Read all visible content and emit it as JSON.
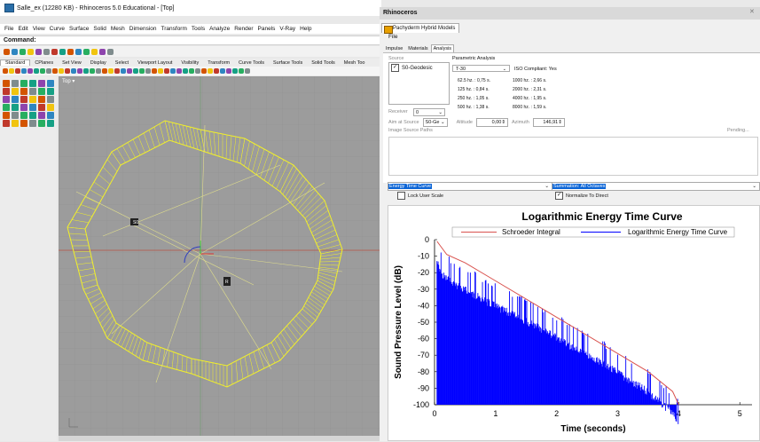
{
  "rhino": {
    "title": "Salle_ex (12280 KB) - Rhinoceros 5.0 Educational - [Top]",
    "menu": [
      "File",
      "Edit",
      "View",
      "Curve",
      "Surface",
      "Solid",
      "Mesh",
      "Dimension",
      "Transform",
      "Tools",
      "Analyze",
      "Render",
      "Panels",
      "V-Ray",
      "Help"
    ],
    "command_label": "Command:",
    "tool_tabs": [
      "Standard",
      "CPlanes",
      "Set View",
      "Display",
      "Select",
      "Viewport Layout",
      "Visibility",
      "Transform",
      "Curve Tools",
      "Surface Tools",
      "Solid Tools",
      "Mesh Too"
    ],
    "viewport_label": "Top",
    "colors": {
      "viewport_bg": "#9c9c9c",
      "model_lines": "#f2f02a",
      "axis_red": "#c0392b"
    }
  },
  "pachyderm": {
    "window_title": "Rhinoceros",
    "tab_title": "Pachyderm Hybrid Models",
    "file_menu": "File",
    "subtabs": [
      "Impulse",
      "Materials",
      "Analysis"
    ],
    "source_label": "Source",
    "source_item": "S0-Geodesic",
    "param_label": "Parametric Analysis",
    "param_selected": "T-30",
    "iso_text": "ISO Compliant: Yes",
    "t30_values": [
      "62.5 hz. : 0,75 s.",
      "125 hz. : 0,84 s.",
      "250 hz. : 1,05 s.",
      "500 hz. : 1,38 s.",
      "1000 hz. : 2,66 s.",
      "2000 hz. : 2,31 s.",
      "4000 hz. : 1,95 s.",
      "8000 hz. : 1,59 s."
    ],
    "receiver_label": "Receiver",
    "receiver_value": "0",
    "aim_label": "Aim at Source",
    "aim_value": "S0-Ge",
    "altitude_label": "Altitude",
    "altitude_value": "0,00",
    "azimuth_label": "Azimuth",
    "azimuth_value": "146,91",
    "isp_label": "Image Source Paths",
    "pending_label": "Pending...",
    "curve_select": "Energy Time Curve",
    "summation_select": "Summation: All Octaves",
    "lock_label": "Lock User Scale",
    "normalize_label": "Normalize To Direct"
  },
  "chart_data": {
    "type": "line",
    "title": "Logarithmic Energy Time Curve",
    "xlabel": "Time (seconds)",
    "ylabel": "Sound Pressure Level (dB)",
    "xlim": [
      0,
      5.2
    ],
    "ylim": [
      -100,
      0
    ],
    "xticks": [
      0,
      1,
      2,
      3,
      4,
      5
    ],
    "yticks": [
      0,
      -10,
      -20,
      -30,
      -40,
      -50,
      -60,
      -70,
      -80,
      -90,
      -100
    ],
    "legend_position": "top",
    "series": [
      {
        "name": "Schroeder Integral",
        "color": "#d9534f",
        "x": [
          0.04,
          0.2,
          0.5,
          1.0,
          1.5,
          2.0,
          2.5,
          3.0,
          3.5,
          3.9,
          4.0
        ],
        "y": [
          -1,
          -9,
          -14,
          -25,
          -36,
          -47,
          -58,
          -69,
          -80,
          -92,
          -100
        ]
      },
      {
        "name": "Logarithmic Energy Time Curve",
        "color": "#0000ff",
        "envelope_x": [
          0.04,
          0.1,
          0.3,
          0.5,
          1.0,
          1.5,
          2.0,
          2.5,
          3.0,
          3.5,
          3.9,
          4.0
        ],
        "envelope_top_y": [
          -2,
          -10,
          -16,
          -20,
          -30,
          -39,
          -49,
          -60,
          -70,
          -82,
          -95,
          -100
        ]
      }
    ]
  }
}
